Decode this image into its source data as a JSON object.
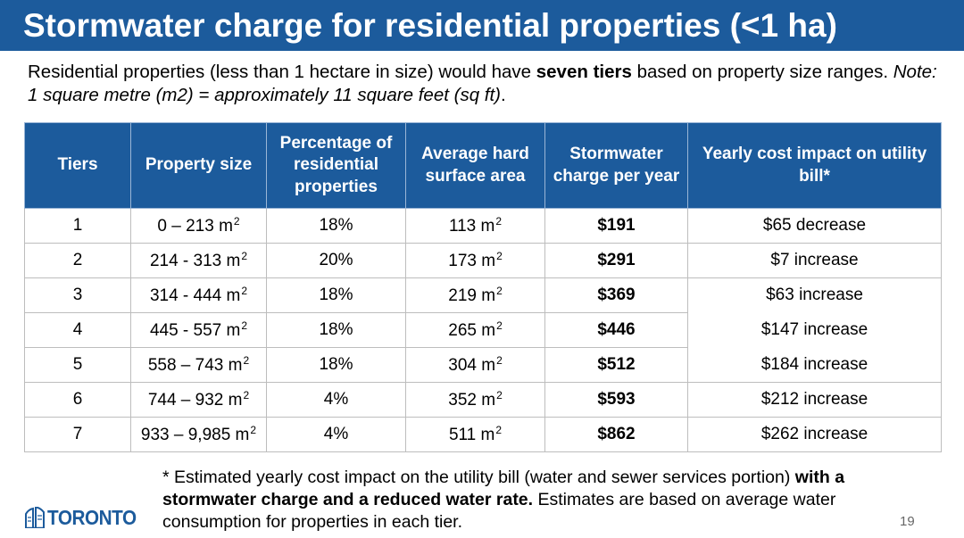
{
  "slide": {
    "title": "Stormwater charge for residential properties (<1 ha)",
    "page_number": "19"
  },
  "intro": {
    "part1": "Residential properties (less than 1 hectare in size) would have ",
    "bold": "seven tiers",
    "part2": " based on property size ranges. ",
    "note_italic": "Note: 1 square metre (m2) = approximately 11 square feet (sq ft)",
    "end": "."
  },
  "table": {
    "headers": [
      "Tiers",
      "Property size",
      "Percentage of residential properties",
      "Average hard surface area",
      "Stormwater charge per year",
      "Yearly cost impact on utility bill*"
    ],
    "unit": "m",
    "unit_sup": "2",
    "rows": [
      {
        "tier": "1",
        "size": "0 – 213 m",
        "pct": "18%",
        "area": "113 m",
        "charge": "$191",
        "impact": "$65 decrease"
      },
      {
        "tier": "2",
        "size": "214  -  313 m",
        "pct": "20%",
        "area": "173 m",
        "charge": "$291",
        "impact": "$7 increase"
      },
      {
        "tier": "3",
        "size": "314 -  444 m",
        "pct": "18%",
        "area": "219 m",
        "charge": "$369",
        "impact": "$63 increase"
      },
      {
        "tier": "4",
        "size": "445  - 557 m",
        "pct": "18%",
        "area": "265 m",
        "charge": "$446",
        "impact": "$147 increase"
      },
      {
        "tier": "5",
        "size": "558 – 743 m",
        "pct": "18%",
        "area": "304 m",
        "charge": "$512",
        "impact": "$184 increase"
      },
      {
        "tier": "6",
        "size": "744 – 932 m",
        "pct": "4%",
        "area": "352 m",
        "charge": "$593",
        "impact": "$212 increase"
      },
      {
        "tier": "7",
        "size": "933 – 9,985 m",
        "pct": "4%",
        "area": "511 m",
        "charge": "$862",
        "impact": "$262 increase"
      }
    ]
  },
  "footnote": {
    "part1": "* Estimated yearly cost impact on the utility bill (water and sewer services portion) ",
    "bold": "with a stormwater charge and a reduced water rate.",
    "part2": " Estimates are based on average water consumption for properties in each tier."
  },
  "logo": {
    "text": "TORONTO",
    "icon": "city-hall-icon",
    "color": "#1c5b9c"
  },
  "colors": {
    "header_bg": "#1c5b9c",
    "title_bg": "#1c5b9c"
  }
}
